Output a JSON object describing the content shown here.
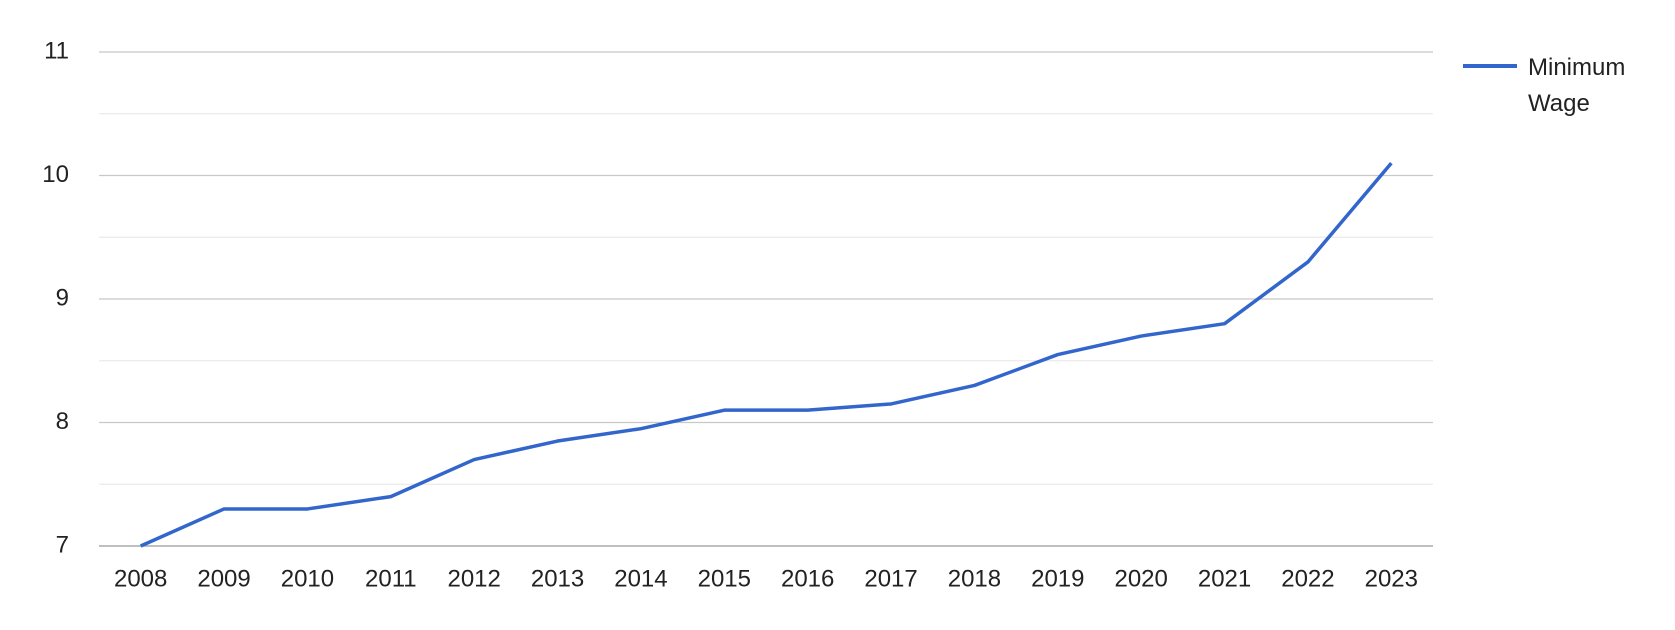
{
  "chart_data": {
    "type": "line",
    "categories": [
      "2008",
      "2009",
      "2010",
      "2011",
      "2012",
      "2013",
      "2014",
      "2015",
      "2016",
      "2017",
      "2018",
      "2019",
      "2020",
      "2021",
      "2022",
      "2023"
    ],
    "series": [
      {
        "name": "Minimum Wage",
        "color": "#3366cc",
        "values": [
          7.0,
          7.3,
          7.3,
          7.4,
          7.7,
          7.85,
          7.95,
          8.1,
          8.1,
          8.15,
          8.3,
          8.55,
          8.7,
          8.8,
          9.3,
          10.1
        ]
      }
    ],
    "ylim": [
      7,
      11
    ],
    "yticks": [
      7,
      8,
      9,
      10,
      11
    ],
    "minor_gridlines": [
      7.5,
      8.5,
      9.5,
      10.5
    ],
    "grid": true,
    "legend": "right"
  }
}
